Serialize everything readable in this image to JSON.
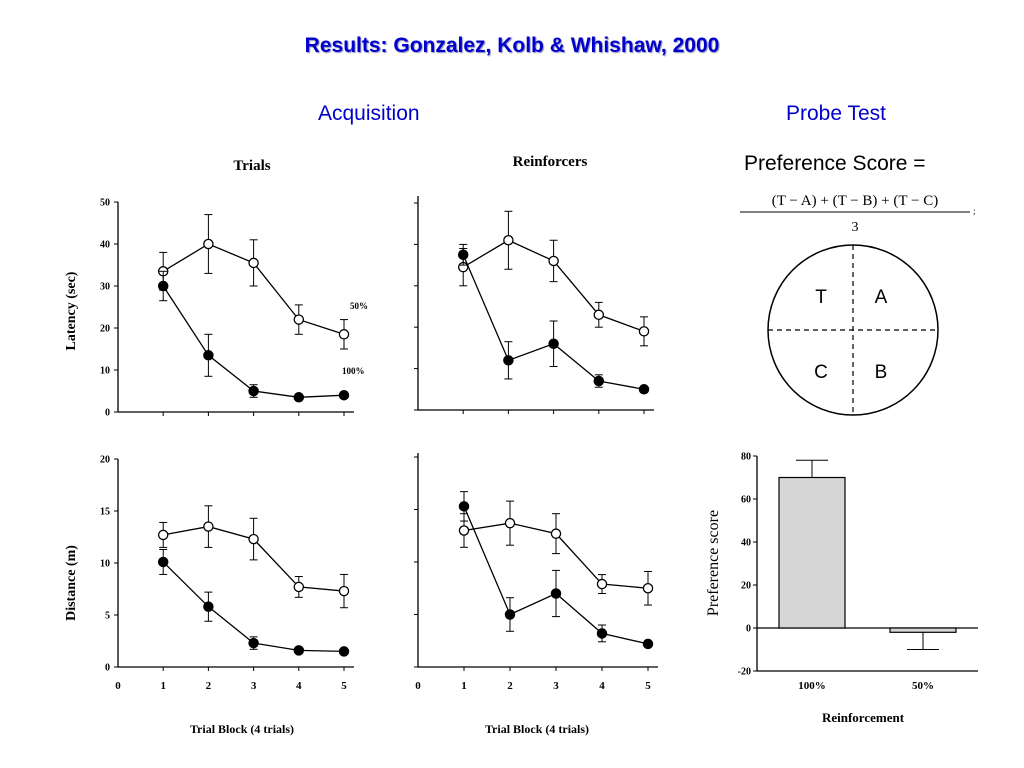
{
  "slide": {
    "title": "Results: Gonzalez, Kolb & Whishaw, 2000",
    "acquisition_label": "Acquisition",
    "probe_label": "Probe Test",
    "preference_label": "Preference Score =",
    "formula_numerator": "(T − A) + (T − B) + (T − C)",
    "formula_denominator": "3",
    "formula_trailing": ";"
  },
  "colors": {
    "title": "#0000cc",
    "bar_fill": "#d6d6d6",
    "ink": "#000000"
  },
  "maze": {
    "quadrants": [
      "T",
      "A",
      "C",
      "B"
    ]
  },
  "chart_data": [
    {
      "id": "trials_latency",
      "type": "line",
      "title": "Trials",
      "ylabel": "Latency (sec)",
      "xlabel": "",
      "x": [
        1,
        2,
        3,
        4,
        5
      ],
      "xticks": [],
      "yticks": [
        0,
        10,
        20,
        30,
        40,
        50
      ],
      "ylim": [
        0,
        50
      ],
      "xlim": [
        0,
        5
      ],
      "series": [
        {
          "name": "50%",
          "marker": "open",
          "values": [
            33.5,
            40,
            35.5,
            22,
            18.5
          ],
          "errors": [
            4.5,
            7,
            5.5,
            3.5,
            3.5
          ]
        },
        {
          "name": "100%",
          "marker": "filled",
          "values": [
            30,
            13.5,
            5,
            3.5,
            4
          ],
          "errors": [
            3.5,
            5,
            1.5,
            0.5,
            0.5
          ]
        }
      ]
    },
    {
      "id": "reinforcers_latency",
      "type": "line",
      "title": "Reinforcers",
      "ylabel": "",
      "xlabel": "",
      "x": [
        1,
        2,
        3,
        4,
        5
      ],
      "xticks": [],
      "yticks": [],
      "ylim": [
        0,
        50
      ],
      "xlim": [
        0,
        5
      ],
      "series": [
        {
          "name": "",
          "marker": "open",
          "values": [
            34.5,
            41,
            36,
            23,
            19
          ],
          "errors": [
            4.5,
            7,
            5,
            3,
            3.5
          ]
        },
        {
          "name": "",
          "marker": "filled",
          "values": [
            37.5,
            12,
            16,
            7,
            5
          ],
          "errors": [
            2.5,
            4.5,
            5.5,
            1.5,
            0.5
          ]
        }
      ]
    },
    {
      "id": "trials_distance",
      "type": "line",
      "title": "",
      "ylabel": "Distance (m)",
      "xlabel": "Trial Block (4 trials)",
      "x": [
        1,
        2,
        3,
        4,
        5
      ],
      "xticks": [
        0,
        1,
        2,
        3,
        4,
        5
      ],
      "yticks": [
        0,
        5,
        10,
        15,
        20
      ],
      "ylim": [
        0,
        20
      ],
      "xlim": [
        0,
        5
      ],
      "series": [
        {
          "name": "",
          "marker": "open",
          "values": [
            12.7,
            13.5,
            12.3,
            7.7,
            7.3
          ],
          "errors": [
            1.2,
            2,
            2,
            1,
            1.6
          ]
        },
        {
          "name": "",
          "marker": "filled",
          "values": [
            10.1,
            5.8,
            2.3,
            1.6,
            1.5
          ],
          "errors": [
            1.2,
            1.4,
            0.6,
            0.2,
            0.2
          ]
        }
      ]
    },
    {
      "id": "reinforcers_distance",
      "type": "line",
      "title": "",
      "ylabel": "",
      "xlabel": "Trial Block (4 trials)",
      "x": [
        1,
        2,
        3,
        4,
        5
      ],
      "xticks": [
        0,
        1,
        2,
        3,
        4,
        5
      ],
      "yticks": [],
      "ylim": [
        0,
        20
      ],
      "xlim": [
        0,
        5
      ],
      "series": [
        {
          "name": "",
          "marker": "open",
          "values": [
            13,
            13.7,
            12.7,
            7.9,
            7.5
          ],
          "errors": [
            1.6,
            2.1,
            1.9,
            0.9,
            1.6
          ]
        },
        {
          "name": "",
          "marker": "filled",
          "values": [
            15.3,
            5,
            7,
            3.2,
            2.2
          ],
          "errors": [
            1.4,
            1.6,
            2.2,
            0.8,
            0.2
          ]
        }
      ]
    },
    {
      "id": "probe_preference",
      "type": "bar",
      "title": "",
      "ylabel": "Preference score",
      "xlabel": "Reinforcement",
      "categories": [
        "100%",
        "50%"
      ],
      "values": [
        70,
        -2
      ],
      "errors": [
        8,
        8
      ],
      "yticks": [
        -20,
        0,
        20,
        40,
        60,
        80
      ],
      "ylim": [
        -20,
        80
      ]
    }
  ]
}
